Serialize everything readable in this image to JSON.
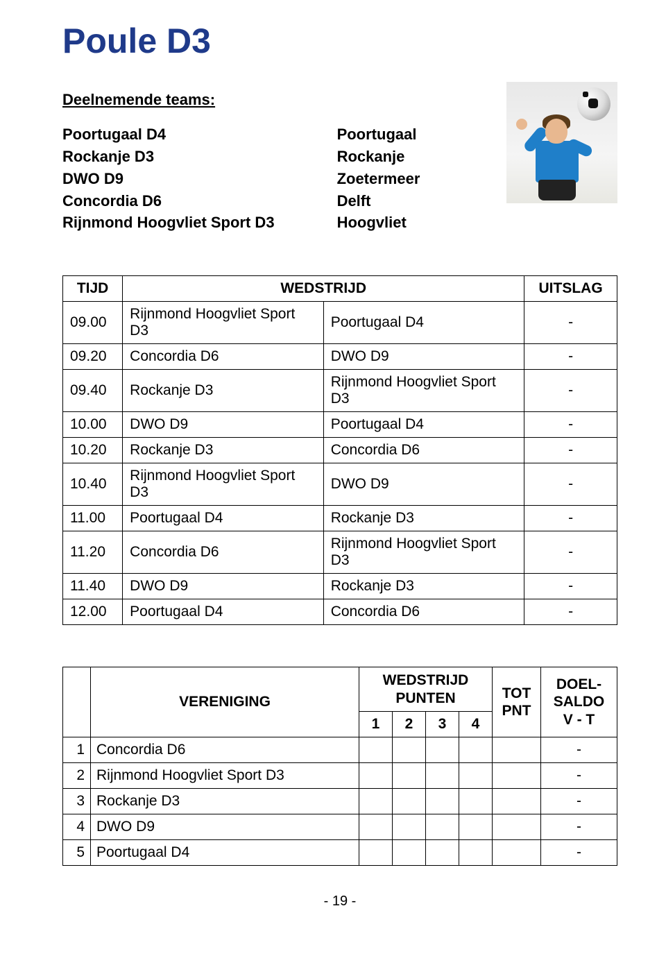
{
  "title": "Poule D3",
  "teams_heading": "Deelnemende teams:",
  "teams": [
    {
      "name": "Poortugaal D4",
      "city": "Poortugaal"
    },
    {
      "name": "Rockanje D3",
      "city": "Rockanje"
    },
    {
      "name": "DWO D9",
      "city": "Zoetermeer"
    },
    {
      "name": "Concordia D6",
      "city": "Delft"
    },
    {
      "name": "Rijnmond Hoogvliet Sport D3",
      "city": "Hoogvliet"
    }
  ],
  "schedule": {
    "headers": {
      "tijd": "TIJD",
      "wedstrijd": "WEDSTRIJD",
      "uitslag": "UITSLAG"
    },
    "rows": [
      {
        "tijd": "09.00",
        "a": "Rijnmond Hoogvliet Sport D3",
        "b": "Poortugaal D4",
        "u": "-"
      },
      {
        "tijd": "09.20",
        "a": "Concordia D6",
        "b": "DWO D9",
        "u": "-"
      },
      {
        "tijd": "09.40",
        "a": "Rockanje D3",
        "b": "Rijnmond Hoogvliet Sport D3",
        "u": "-"
      },
      {
        "tijd": "10.00",
        "a": "DWO D9",
        "b": "Poortugaal D4",
        "u": "-"
      },
      {
        "tijd": "10.20",
        "a": "Rockanje D3",
        "b": "Concordia D6",
        "u": "-"
      },
      {
        "tijd": "10.40",
        "a": "Rijnmond Hoogvliet Sport D3",
        "b": "DWO D9",
        "u": "-"
      },
      {
        "tijd": "11.00",
        "a": "Poortugaal D4",
        "b": "Rockanje D3",
        "u": "-"
      },
      {
        "tijd": "11.20",
        "a": "Concordia D6",
        "b": "Rijnmond Hoogvliet Sport D3",
        "u": "-"
      },
      {
        "tijd": "11.40",
        "a": "DWO D9",
        "b": "Rockanje D3",
        "u": "-"
      },
      {
        "tijd": "12.00",
        "a": "Poortugaal D4",
        "b": "Concordia D6",
        "u": "-"
      }
    ]
  },
  "standings": {
    "headers": {
      "vereniging": "VERENIGING",
      "wedstrijd_punten": "WEDSTRIJD PUNTEN",
      "tot_pnt": "TOT PNT",
      "doel_saldo": "DOEL-SALDO V - T",
      "cols": [
        "1",
        "2",
        "3",
        "4"
      ]
    },
    "rows": [
      {
        "n": "1",
        "club": "Concordia D6",
        "saldo": "-"
      },
      {
        "n": "2",
        "club": "Rijnmond Hoogvliet Sport D3",
        "saldo": "-"
      },
      {
        "n": "3",
        "club": "Rockanje D3",
        "saldo": "-"
      },
      {
        "n": "4",
        "club": "DWO D9",
        "saldo": "-"
      },
      {
        "n": "5",
        "club": "Poortugaal D4",
        "saldo": "-"
      }
    ]
  },
  "footer": "- 19 -",
  "colors": {
    "title": "#1f3a8a",
    "border": "#000000",
    "shirt": "#1f7fc9",
    "skin": "#e8b890",
    "hair": "#5a3b1a"
  }
}
